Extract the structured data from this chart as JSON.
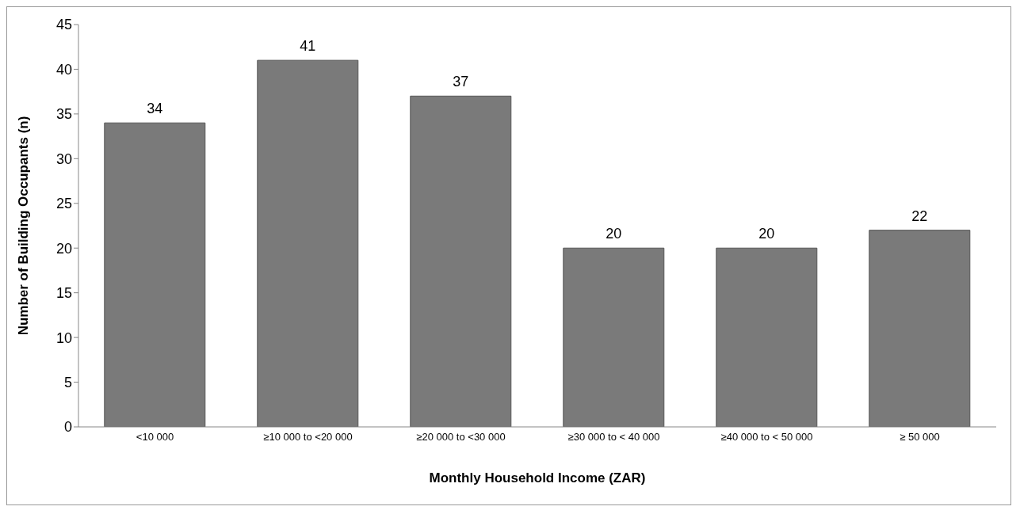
{
  "chart_data": {
    "type": "bar",
    "xlabel": "Monthly Household Income (ZAR)",
    "ylabel": "Number of Building Occupants (n)",
    "categories": [
      "<10 000",
      "≥10 000 to <20 000",
      "≥20 000 to <30 000",
      "≥30 000 to < 40 000",
      "≥40 000 to < 50 000",
      "≥ 50 000"
    ],
    "values": [
      34,
      41,
      37,
      20,
      20,
      22
    ],
    "color": "#7a7a7a",
    "ylim": [
      0,
      45
    ],
    "yticks": [
      0,
      5,
      10,
      15,
      20,
      25,
      30,
      35,
      40,
      45
    ],
    "grid": false,
    "data_labels": true
  }
}
